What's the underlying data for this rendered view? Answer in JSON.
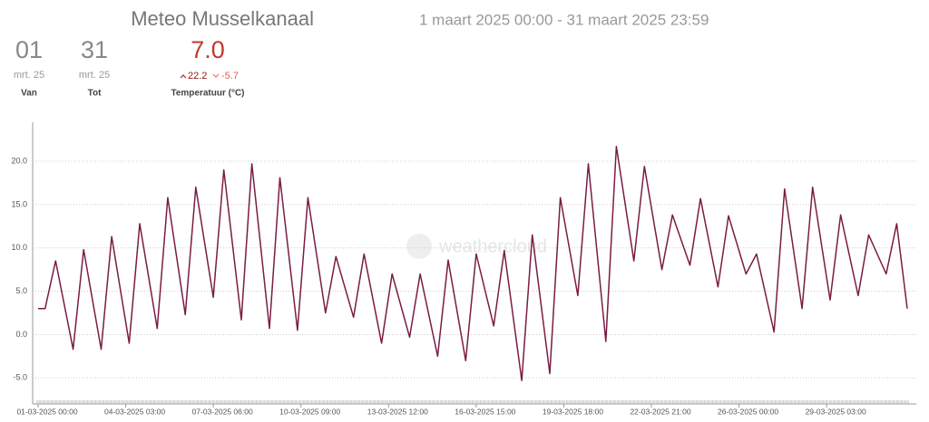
{
  "header": {
    "title": "Meteo Musselkanaal",
    "period": "1 maart 2025 00:00 - 31 maart 2025 23:59"
  },
  "stats": [
    {
      "value": "01",
      "sub": "mrt. 25",
      "label": "Van"
    },
    {
      "value": "31",
      "sub": "mrt. 25",
      "label": "Tot"
    },
    {
      "value": "7.0",
      "max": "22.2",
      "min": "-5.7",
      "label": "Temperatuur (°C)"
    }
  ],
  "chart_data": {
    "type": "line",
    "watermark": "weathercloud",
    "x": [
      "01-03-2025 00:00",
      "01-03-2025 06:00",
      "01-03-2025 15:00",
      "02-03-2025 06:00",
      "02-03-2025 15:00",
      "03-03-2025 06:00",
      "03-03-2025 15:00",
      "04-03-2025 06:00",
      "04-03-2025 15:00",
      "05-03-2025 06:00",
      "05-03-2025 15:00",
      "06-03-2025 06:00",
      "06-03-2025 15:00",
      "07-03-2025 06:00",
      "07-03-2025 15:00",
      "08-03-2025 06:00",
      "08-03-2025 15:00",
      "09-03-2025 06:00",
      "09-03-2025 15:00",
      "10-03-2025 06:00",
      "10-03-2025 15:00",
      "11-03-2025 06:00",
      "11-03-2025 15:00",
      "12-03-2025 06:00",
      "12-03-2025 15:00",
      "13-03-2025 06:00",
      "13-03-2025 15:00",
      "14-03-2025 06:00",
      "14-03-2025 15:00",
      "15-03-2025 06:00",
      "15-03-2025 15:00",
      "16-03-2025 06:00",
      "16-03-2025 15:00",
      "17-03-2025 06:00",
      "17-03-2025 15:00",
      "18-03-2025 06:00",
      "18-03-2025 15:00",
      "19-03-2025 06:00",
      "19-03-2025 15:00",
      "20-03-2025 06:00",
      "20-03-2025 15:00",
      "21-03-2025 06:00",
      "21-03-2025 15:00",
      "22-03-2025 06:00",
      "22-03-2025 15:00",
      "23-03-2025 06:00",
      "23-03-2025 15:00",
      "24-03-2025 06:00",
      "24-03-2025 15:00",
      "25-03-2025 06:00",
      "25-03-2025 15:00",
      "26-03-2025 06:00",
      "26-03-2025 15:00",
      "27-03-2025 06:00",
      "27-03-2025 15:00",
      "28-03-2025 06:00",
      "28-03-2025 15:00",
      "29-03-2025 06:00",
      "29-03-2025 15:00",
      "30-03-2025 06:00",
      "30-03-2025 15:00",
      "31-03-2025 06:00",
      "31-03-2025 15:00",
      "31-03-2025 23:59"
    ],
    "series": [
      {
        "name": "Temperatuur",
        "color": "#7a1c44",
        "values": [
          3.0,
          3.0,
          8.5,
          -1.7,
          9.8,
          -1.7,
          11.3,
          -1.0,
          12.8,
          0.7,
          15.8,
          2.3,
          17.0,
          4.3,
          19.0,
          1.7,
          19.7,
          0.7,
          18.1,
          0.5,
          15.8,
          2.5,
          9.0,
          2.0,
          9.3,
          -1.0,
          7.0,
          -0.3,
          7.0,
          -2.5,
          8.6,
          -3.0,
          9.3,
          1.0,
          9.7,
          -5.3,
          11.5,
          -4.5,
          15.8,
          4.5,
          19.7,
          -0.8,
          21.7,
          8.5,
          19.4,
          7.5,
          13.8,
          8.0,
          15.7,
          5.5,
          13.7,
          7.0,
          9.3,
          0.3,
          16.8,
          3.0,
          17.0,
          4.0,
          13.8,
          4.5,
          11.5,
          7.0,
          12.8,
          3.0
        ]
      }
    ],
    "ylim": [
      -8,
      24.5
    ],
    "yticks": [
      {
        "value": -5,
        "label": "-5.0"
      },
      {
        "value": 0,
        "label": "0.0"
      },
      {
        "value": 5,
        "label": "5.0"
      },
      {
        "value": 10,
        "label": "10.0"
      },
      {
        "value": 15,
        "label": "15.0"
      },
      {
        "value": 20,
        "label": "20.0"
      }
    ],
    "xticks": [
      "01-03-2025 00:00",
      "04-03-2025 03:00",
      "07-03-2025 06:00",
      "10-03-2025 09:00",
      "13-03-2025 12:00",
      "16-03-2025 15:00",
      "19-03-2025 18:00",
      "22-03-2025 21:00",
      "26-03-2025 00:00",
      "29-03-2025 03:00"
    ],
    "grid": true
  }
}
